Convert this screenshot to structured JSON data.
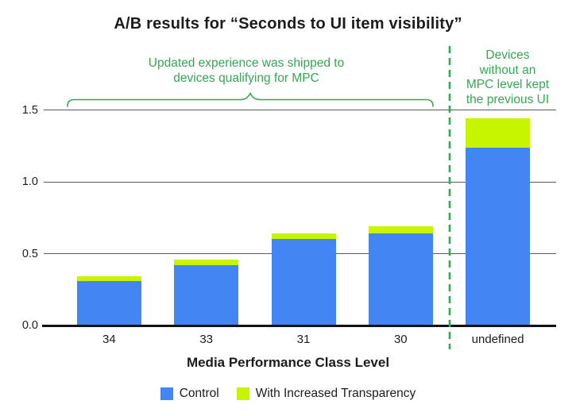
{
  "title": "A/B results for “Seconds to UI item visibility”",
  "annotations": {
    "left_lines": [
      "Updated experience was shipped to",
      "devices qualifying for MPC"
    ],
    "right_lines": [
      "Devices",
      "without an",
      "MPC level kept",
      "the previous UI"
    ]
  },
  "chart_data": {
    "type": "bar",
    "stacked": true,
    "title": "A/B results for “Seconds to UI item visibility”",
    "xlabel": "Media Performance Class Level",
    "ylabel": "",
    "categories": [
      "34",
      "33",
      "31",
      "30",
      "undefined"
    ],
    "series": [
      {
        "name": "Control",
        "color": "#4485F4",
        "values": [
          0.31,
          0.42,
          0.6,
          0.64,
          1.24
        ]
      },
      {
        "name": "With Increased Transparency",
        "color": "#C7F500",
        "values": [
          0.03,
          0.04,
          0.04,
          0.05,
          0.2
        ]
      }
    ],
    "stack_totals": [
      0.34,
      0.46,
      0.64,
      0.69,
      1.44
    ],
    "ylim": [
      0,
      1.5
    ],
    "yticks": [
      0,
      0.5,
      1.0,
      1.5
    ],
    "ytick_labels": [
      "0.0",
      "0.5",
      "1.0",
      "1.5"
    ],
    "grid": true,
    "legend_position": "bottom"
  },
  "legend": {
    "items": [
      {
        "label": "Control",
        "color": "#4485F4"
      },
      {
        "label": "With Increased Transparency",
        "color": "#C7F500"
      }
    ]
  },
  "colors": {
    "control_blue": "#4485F4",
    "transparency_green": "#C7F500",
    "annotation_green": "#34A853",
    "gridline_gray": "#58595B",
    "axis_black": "#111111"
  }
}
